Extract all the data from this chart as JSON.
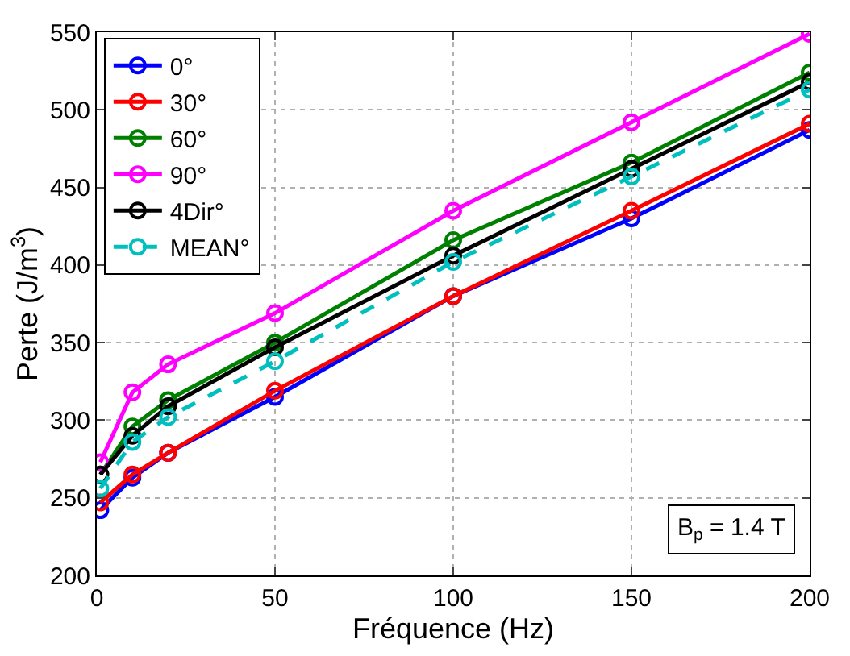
{
  "chart_data": {
    "type": "line",
    "xlabel": "Fréquence (Hz)",
    "ylabel": "Perte (J/m$^{3}$)",
    "x": [
      1,
      10,
      20,
      50,
      100,
      150,
      200
    ],
    "series": [
      {
        "name": "0°",
        "color": "#0000ff",
        "values": [
          242,
          263,
          279,
          315,
          380,
          430,
          487
        ]
      },
      {
        "name": "30°",
        "color": "#ff0000",
        "values": [
          247,
          265,
          279,
          319,
          380,
          435,
          491
        ]
      },
      {
        "name": "60°",
        "color": "#008000",
        "values": [
          265,
          296,
          313,
          350,
          416,
          466,
          524
        ]
      },
      {
        "name": "90°",
        "color": "#ff00ff",
        "values": [
          273,
          318,
          336,
          369,
          435,
          492,
          549
        ]
      },
      {
        "name": "4Dir°",
        "color": "#000000",
        "values": [
          265,
          290,
          309,
          347,
          406,
          462,
          518
        ]
      },
      {
        "name": "MEAN°",
        "color": "#00bfbf",
        "values": [
          256,
          286,
          302,
          338,
          402,
          457,
          513
        ],
        "line_style": "dashed"
      }
    ],
    "xlim": [
      0,
      200
    ],
    "xticks": [
      0,
      50,
      100,
      150,
      200
    ],
    "ylim": [
      200,
      550
    ],
    "yticks": [
      200,
      250,
      300,
      350,
      400,
      450,
      500,
      550
    ],
    "grid": true,
    "legend": "top left",
    "marker": "circle",
    "line_style": "solid",
    "annotations": [
      "B$_{p}$ = 1.4 T"
    ]
  }
}
